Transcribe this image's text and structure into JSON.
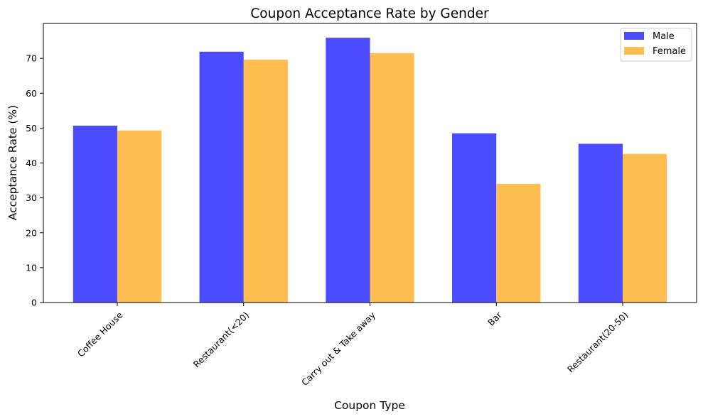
{
  "chart_data": {
    "type": "bar",
    "title": "Coupon Acceptance Rate by Gender",
    "xlabel": "Coupon Type",
    "ylabel": "Acceptance Rate (%)",
    "categories": [
      "Coffee House",
      "Restaurant(<20)",
      "Carry out & Take away",
      "Bar",
      "Restaurant(20-50)"
    ],
    "series": [
      {
        "name": "Male",
        "color": "#4b4bff",
        "values": [
          50.7,
          71.9,
          75.9,
          48.5,
          45.5
        ]
      },
      {
        "name": "Female",
        "color": "#ffbe4f",
        "values": [
          49.3,
          69.6,
          71.5,
          34.0,
          42.6
        ]
      }
    ],
    "ylim": [
      0,
      80
    ],
    "yticks": [
      0,
      10,
      20,
      30,
      40,
      50,
      60,
      70
    ],
    "legend_position": "top-right",
    "grid": false
  }
}
